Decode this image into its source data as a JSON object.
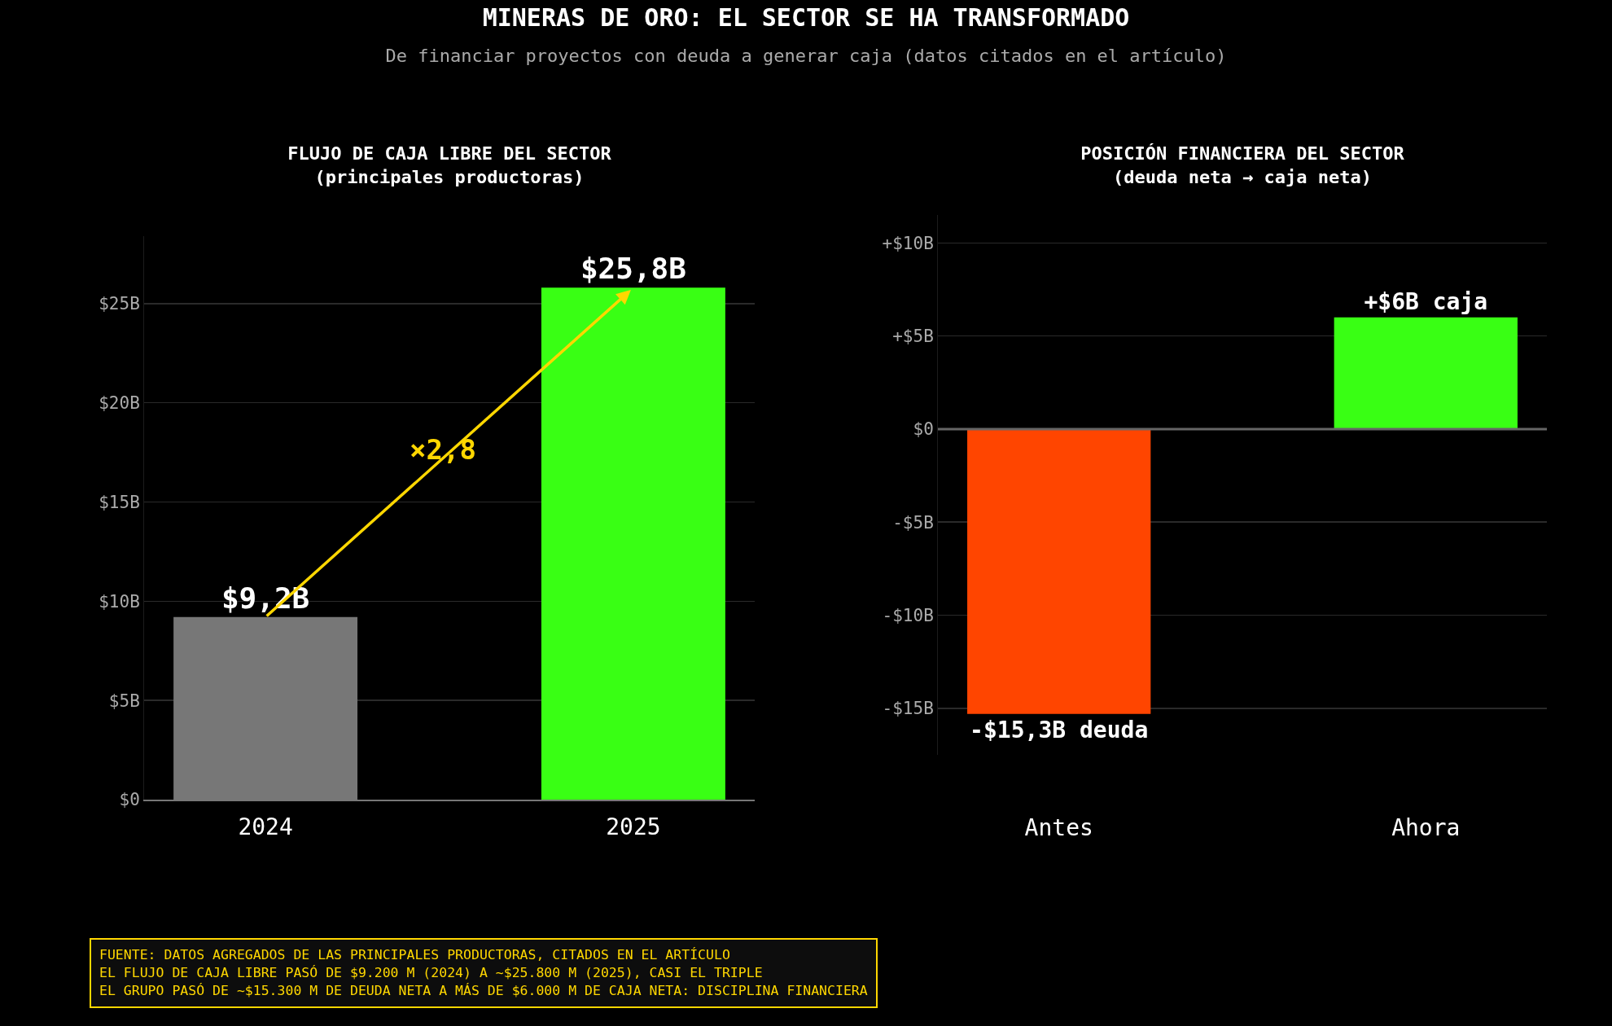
{
  "chart_data": [
    {
      "type": "other",
      "title": "MINERAS DE ORO: EL SECTOR SE HA TRANSFORMADO",
      "subtitle": "De financiar proyectos con deuda a generar caja (datos citados en el artículo)",
      "annotations": [
        "FUENTE: DATOS AGREGADOS DE LAS PRINCIPALES PRODUCTORAS, CITADOS EN EL ARTÍCULO",
        "EL FLUJO DE CAJA LIBRE PASÓ DE $9.200 M (2024) A ~$25.800 M (2025), CASI EL TRIPLE",
        "EL GRUPO PASÓ DE ~$15.300 M DE DEUDA NETA A MÁS DE $6.000 M DE CAJA NETA: DISCIPLINA FINANCIERA"
      ]
    },
    {
      "type": "bar",
      "title": "FLUJO DE CAJA LIBRE DEL SECTOR\n(principales productoras)",
      "categories": [
        "2024",
        "2025"
      ],
      "values": [
        9.2,
        25.8
      ],
      "colors": [
        "#777777",
        "#39ff14"
      ],
      "value_labels": [
        "$9,2B",
        "$25,8B"
      ],
      "ylim": [
        0,
        28.4
      ],
      "yticks": [
        {
          "value": 0,
          "label": "$0"
        },
        {
          "value": 5,
          "label": "$5B"
        },
        {
          "value": 10,
          "label": "$10B"
        },
        {
          "value": 15,
          "label": "$15B"
        },
        {
          "value": 20,
          "label": "$20B"
        },
        {
          "value": 25,
          "label": "$25B"
        }
      ],
      "grid": "y",
      "annotations": [
        "×2,8"
      ]
    },
    {
      "type": "bar",
      "title": "POSICIÓN FINANCIERA DEL SECTOR\n(deuda neta → caja neta)",
      "categories": [
        "Antes",
        "Ahora"
      ],
      "values": [
        -15.3,
        6
      ],
      "colors": [
        "#ff4500",
        "#39ff14"
      ],
      "value_labels": [
        "-$15,3B deuda",
        "+$6B caja"
      ],
      "ylim": [
        -17.5,
        11.5
      ],
      "yticks": [
        {
          "value": -15,
          "label": "-$15B"
        },
        {
          "value": -10,
          "label": "-$10B"
        },
        {
          "value": -5,
          "label": "-$5B"
        },
        {
          "value": 0,
          "label": "$0"
        },
        {
          "value": 5,
          "label": "+$5B"
        },
        {
          "value": 10,
          "label": "+$10B"
        }
      ],
      "grid": "y",
      "ref_lines": [
        {
          "axis": "y",
          "value": 0,
          "color": "#666666"
        }
      ]
    }
  ]
}
